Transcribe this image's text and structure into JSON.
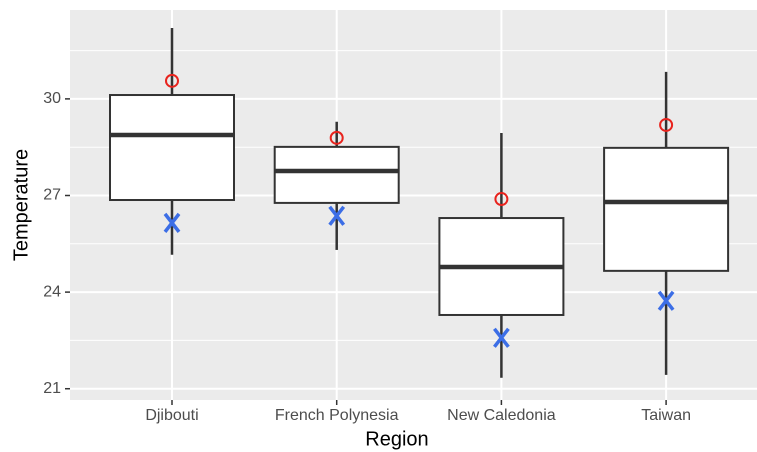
{
  "chart_data": {
    "type": "boxplot",
    "x_label": "Region",
    "y_label": "Temperature",
    "categories": [
      "Djibouti",
      "French Polynesia",
      "New Caledonia",
      "Taiwan"
    ],
    "boxes": {
      "min": [
        25.16,
        25.31,
        21.34,
        21.43
      ],
      "q1": [
        26.86,
        26.77,
        23.29,
        24.66
      ],
      "median": [
        28.88,
        27.76,
        24.78,
        26.8
      ],
      "q3": [
        30.12,
        28.51,
        26.3,
        28.48
      ],
      "max": [
        32.2,
        29.29,
        28.94,
        30.84
      ],
      "color": "#333333"
    },
    "markers": [
      {
        "shape": "circle",
        "color": "#e8231d",
        "values": [
          30.56,
          28.79,
          26.89,
          29.19
        ]
      },
      {
        "shape": "x",
        "color": "#3c6ee6",
        "values": [
          26.15,
          26.37,
          22.58,
          23.73
        ]
      }
    ],
    "ylim": [
      20.65,
      32.76
    ],
    "yticks": [
      21,
      24,
      27,
      30
    ],
    "minor_gridlines": [
      22.5,
      25.5,
      28.5,
      31.5
    ],
    "grid": true
  }
}
